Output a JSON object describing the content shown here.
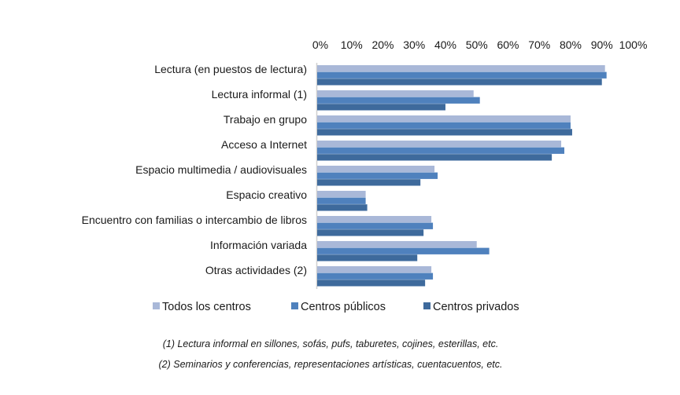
{
  "chart_data": {
    "type": "bar",
    "orientation": "horizontal",
    "title": "",
    "xlabel": "",
    "ylabel": "",
    "xlim": [
      0,
      100
    ],
    "x_axis_position": "top",
    "tick_labels": [
      "0%",
      "10%",
      "20%",
      "30%",
      "40%",
      "50%",
      "60%",
      "70%",
      "80%",
      "90%",
      "100%"
    ],
    "grid": false,
    "legend_position": "bottom",
    "categories": [
      "Lectura (en puestos de lectura)",
      "Lectura  informal  (1)",
      "Trabajo  en  grupo",
      "Acceso a Internet",
      "Espacio multimedia / audiovisuales",
      "Espacio creativo",
      "Encuentro con familias o intercambio de libros",
      "Información variada",
      "Otras actividades (2)"
    ],
    "series": [
      {
        "name": "Todos los centros",
        "color": "#a9b8d8",
        "values": [
          92,
          50,
          81,
          78,
          37.5,
          15.5,
          36.5,
          51,
          36.5
        ]
      },
      {
        "name": "Centros públicos",
        "color": "#4f81bd",
        "values": [
          92.5,
          52,
          81,
          79,
          38.5,
          15.5,
          37,
          55,
          37
        ]
      },
      {
        "name": "Centros privados",
        "color": "#3e6a9c",
        "values": [
          91,
          41,
          81.5,
          75,
          33,
          16,
          34,
          32,
          34.5
        ]
      }
    ],
    "footnotes": [
      "(1) Lectura informal en sillones, sofás, pufs, taburetes, cojines, esterillas, etc.",
      "(2) Seminarios y conferencias, representaciones artísticas, cuentacuentos, etc."
    ]
  }
}
